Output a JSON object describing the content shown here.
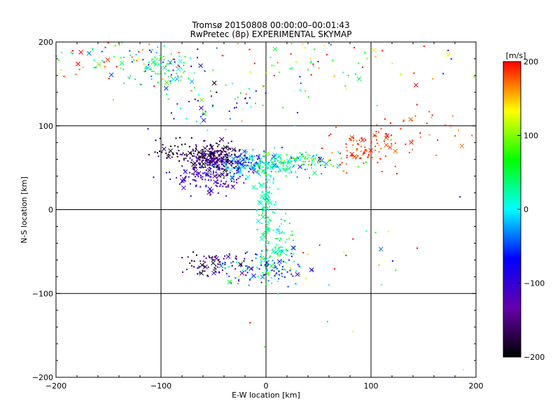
{
  "chart_data": {
    "type": "scatter",
    "title": "Tromsø 20150808 00:00:00–00:01:43",
    "subtitle": "RwPretec (8p) EXPERIMENTAL SKYMAP",
    "xlabel": "E-W location [km]",
    "ylabel": "N-S location [km]",
    "xlim": [
      -200,
      200
    ],
    "ylim": [
      -200,
      200
    ],
    "xticks": [
      -200,
      -100,
      0,
      100,
      200
    ],
    "yticks": [
      -200,
      -100,
      0,
      100,
      200
    ],
    "x_tick_labels": [
      "−200",
      "−100",
      "0",
      "100",
      "200"
    ],
    "y_tick_labels": [
      "−200",
      "−100",
      "0",
      "100",
      "200"
    ],
    "grid": true,
    "colorbar": {
      "label": "[m/s]",
      "range": [
        -200,
        200
      ],
      "ticks": [
        200,
        100,
        0,
        -100,
        -200
      ],
      "tick_labels": [
        "200",
        "100",
        "0",
        "−100",
        "−200"
      ],
      "colormap": "rainbow",
      "stops": [
        "#ff0000",
        "#ffff00",
        "#00ff00",
        "#00ffff",
        "#0000ff",
        "#6600aa",
        "#000000"
      ]
    },
    "marker_types": [
      "dot",
      "cross"
    ],
    "clusters": [
      {
        "cx": -50,
        "cy": 62,
        "sx": 13,
        "sy": 8,
        "n": 260,
        "v": -165,
        "vs": 30
      },
      {
        "cx": -55,
        "cy": 40,
        "sx": 16,
        "sy": 10,
        "n": 130,
        "v": -105,
        "vs": 25
      },
      {
        "cx": -20,
        "cy": 55,
        "sx": 12,
        "sy": 7,
        "n": 80,
        "v": -80,
        "vs": 30
      },
      {
        "cx": -90,
        "cy": 70,
        "sx": 10,
        "sy": 8,
        "n": 40,
        "v": -190,
        "vs": 15
      },
      {
        "cx": 0,
        "cy": 52,
        "sx": 22,
        "sy": 7,
        "n": 170,
        "v": 10,
        "vs": 28
      },
      {
        "cx": 40,
        "cy": 60,
        "sx": 22,
        "sy": 5,
        "n": 90,
        "v": 55,
        "vs": 60
      },
      {
        "cx": 92,
        "cy": 72,
        "sx": 18,
        "sy": 12,
        "n": 90,
        "v": 185,
        "vs": 15
      },
      {
        "cx": 140,
        "cy": 95,
        "sx": 30,
        "sy": 16,
        "n": 40,
        "v": 185,
        "vs": 15
      },
      {
        "cx": 0,
        "cy": 10,
        "sx": 4,
        "sy": 22,
        "n": 90,
        "v": 20,
        "vs": 15
      },
      {
        "cx": 8,
        "cy": -40,
        "sx": 10,
        "sy": 18,
        "n": 80,
        "v": 30,
        "vs": 25
      },
      {
        "cx": -50,
        "cy": -66,
        "sx": 15,
        "sy": 7,
        "n": 80,
        "v": -160,
        "vs": 45
      },
      {
        "cx": 0,
        "cy": -70,
        "sx": 18,
        "sy": 10,
        "n": 120,
        "v": -40,
        "vs": 60
      },
      {
        "cx": -100,
        "cy": 170,
        "sx": 20,
        "sy": 14,
        "n": 110,
        "v": 25,
        "vs": 70
      },
      {
        "cx": -150,
        "cy": 180,
        "sx": 30,
        "sy": 14,
        "n": 60,
        "v": 95,
        "vs": 90
      },
      {
        "cx": 55,
        "cy": 170,
        "sx": 70,
        "sy": 20,
        "n": 90,
        "v": 110,
        "vs": 80
      },
      {
        "cx": -40,
        "cy": 120,
        "sx": 30,
        "sy": 12,
        "n": 50,
        "v": -60,
        "vs": 90
      },
      {
        "cx": 60,
        "cy": -70,
        "sx": 50,
        "sy": 40,
        "n": 30,
        "v": 90,
        "vs": 100
      }
    ]
  }
}
